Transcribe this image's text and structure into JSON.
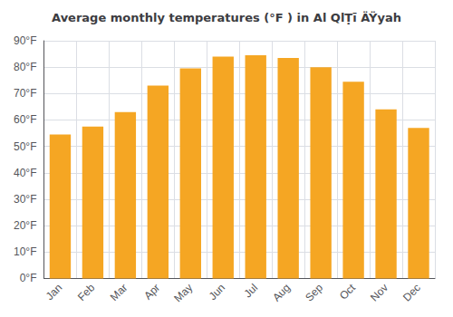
{
  "chart_data": {
    "type": "bar",
    "title": "Average monthly temperatures (°F ) in Al QlṬī ÄŸyah",
    "categories": [
      "Jan",
      "Feb",
      "Mar",
      "Apr",
      "May",
      "Jun",
      "Jul",
      "Aug",
      "Sep",
      "Oct",
      "Nov",
      "Dec"
    ],
    "values": [
      54.5,
      57.5,
      63.0,
      73.0,
      79.5,
      84.0,
      84.5,
      83.5,
      80.0,
      74.5,
      64.0,
      57.0
    ],
    "color": "#F5A623",
    "ylim": [
      0,
      90
    ],
    "yticks": [
      {
        "value": 0,
        "label": "0°F"
      },
      {
        "value": 10,
        "label": "10°F"
      },
      {
        "value": 20,
        "label": "20°F"
      },
      {
        "value": 30,
        "label": "30°F"
      },
      {
        "value": 40,
        "label": "40°F"
      },
      {
        "value": 50,
        "label": "50°F"
      },
      {
        "value": 60,
        "label": "60°F"
      },
      {
        "value": 70,
        "label": "70°F"
      },
      {
        "value": 80,
        "label": "80°F"
      },
      {
        "value": 90,
        "label": "90°F"
      }
    ],
    "grid": true
  }
}
